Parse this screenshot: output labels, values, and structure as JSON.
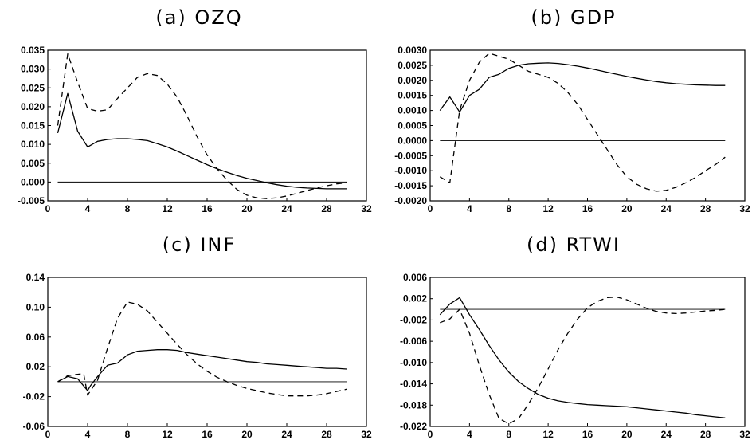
{
  "chart_data": [
    {
      "type": "line",
      "title": "(a) OZQ",
      "xlim": [
        0,
        32
      ],
      "ylim": [
        -0.005,
        0.035
      ],
      "x_ticks": [
        0,
        4,
        8,
        12,
        16,
        20,
        24,
        28,
        32
      ],
      "y_ticks": [
        -0.005,
        0.0,
        0.005,
        0.01,
        0.015,
        0.02,
        0.025,
        0.03,
        0.035
      ],
      "x_tick_labels": [
        "0",
        "4",
        "8",
        "12",
        "16",
        "20",
        "24",
        "28",
        "32"
      ],
      "y_tick_labels": [
        "-0.005",
        "0.000",
        "0.005",
        "0.010",
        "0.015",
        "0.020",
        "0.025",
        "0.030",
        "0.035"
      ],
      "zero_line": 0,
      "grid": false,
      "series": [
        {
          "style": "solid",
          "x": [
            1,
            2,
            3,
            4,
            5,
            6,
            7,
            8,
            9,
            10,
            11,
            12,
            13,
            14,
            15,
            16,
            17,
            18,
            19,
            20,
            21,
            22,
            23,
            24,
            25,
            26,
            27,
            28,
            29,
            30
          ],
          "y": [
            0.013,
            0.0235,
            0.0135,
            0.0093,
            0.0108,
            0.0113,
            0.0115,
            0.0115,
            0.0113,
            0.011,
            0.0102,
            0.0093,
            0.0082,
            0.007,
            0.0058,
            0.0046,
            0.0035,
            0.0026,
            0.0017,
            0.001,
            0.0004,
            -0.0002,
            -0.0007,
            -0.0011,
            -0.0014,
            -0.0016,
            -0.0017,
            -0.0018,
            -0.0018,
            -0.0018
          ]
        },
        {
          "style": "dashed",
          "x": [
            1,
            2,
            3,
            4,
            5,
            6,
            7,
            8,
            9,
            10,
            11,
            12,
            13,
            14,
            15,
            16,
            17,
            18,
            19,
            20,
            21,
            22,
            23,
            24,
            25,
            26,
            27,
            28,
            29,
            30
          ],
          "y": [
            0.015,
            0.034,
            0.0265,
            0.0195,
            0.0188,
            0.0192,
            0.0222,
            0.025,
            0.0278,
            0.0288,
            0.0283,
            0.026,
            0.0225,
            0.0175,
            0.012,
            0.0072,
            0.0035,
            0.0005,
            -0.002,
            -0.0035,
            -0.0042,
            -0.0044,
            -0.0042,
            -0.0037,
            -0.003,
            -0.0023,
            -0.0016,
            -0.001,
            -0.0005,
            -0.0002
          ]
        }
      ]
    },
    {
      "type": "line",
      "title": "(b) GDP",
      "xlim": [
        0,
        32
      ],
      "ylim": [
        -0.002,
        0.003
      ],
      "x_ticks": [
        0,
        4,
        8,
        12,
        16,
        20,
        24,
        28,
        32
      ],
      "y_ticks": [
        -0.002,
        -0.0015,
        -0.001,
        -0.0005,
        0.0,
        0.0005,
        0.001,
        0.0015,
        0.002,
        0.0025,
        0.003
      ],
      "x_tick_labels": [
        "0",
        "4",
        "8",
        "12",
        "16",
        "20",
        "24",
        "28",
        "32"
      ],
      "y_tick_labels": [
        "-0.0020",
        "-0.0015",
        "-0.0010",
        "-0.0005",
        "0.0000",
        "0.0005",
        "0.0010",
        "0.0015",
        "0.0020",
        "0.0025",
        "0.0030"
      ],
      "zero_line": 0,
      "grid": false,
      "series": [
        {
          "style": "solid",
          "x": [
            1,
            2,
            3,
            4,
            5,
            6,
            7,
            8,
            9,
            10,
            11,
            12,
            13,
            14,
            15,
            16,
            17,
            18,
            19,
            20,
            21,
            22,
            23,
            24,
            25,
            26,
            27,
            28,
            29,
            30
          ],
          "y": [
            0.001,
            0.00145,
            0.00095,
            0.0015,
            0.0017,
            0.0021,
            0.0022,
            0.0024,
            0.0025,
            0.00255,
            0.00257,
            0.00258,
            0.00256,
            0.00252,
            0.00247,
            0.00241,
            0.00234,
            0.00227,
            0.0022,
            0.00213,
            0.00207,
            0.00201,
            0.00196,
            0.00192,
            0.00189,
            0.00187,
            0.00185,
            0.00184,
            0.00183,
            0.00183
          ]
        },
        {
          "style": "dashed",
          "x": [
            1,
            2,
            3,
            4,
            5,
            6,
            7,
            8,
            9,
            10,
            11,
            12,
            13,
            14,
            15,
            16,
            17,
            18,
            19,
            20,
            21,
            22,
            23,
            24,
            25,
            26,
            27,
            28,
            29,
            30
          ],
          "y": [
            -0.0012,
            -0.0014,
            0.001,
            0.002,
            0.0026,
            0.0029,
            0.0028,
            0.0027,
            0.0025,
            0.0023,
            0.0022,
            0.0021,
            0.0019,
            0.0016,
            0.0012,
            0.0007,
            0.0002,
            -0.0003,
            -0.0008,
            -0.0012,
            -0.00145,
            -0.0016,
            -0.00168,
            -0.00165,
            -0.00155,
            -0.0014,
            -0.00122,
            -0.001,
            -0.0008,
            -0.00055
          ]
        }
      ]
    },
    {
      "type": "line",
      "title": "(c) INF",
      "xlim": [
        0,
        32
      ],
      "ylim": [
        -0.06,
        0.14
      ],
      "x_ticks": [
        0,
        4,
        8,
        12,
        16,
        20,
        24,
        28,
        32
      ],
      "y_ticks": [
        -0.06,
        -0.02,
        0.02,
        0.06,
        0.1,
        0.14
      ],
      "x_tick_labels": [
        "0",
        "4",
        "8",
        "12",
        "16",
        "20",
        "24",
        "28",
        "32"
      ],
      "y_tick_labels": [
        "-0.06",
        "-0.02",
        "0.02",
        "0.06",
        "0.10",
        "0.14"
      ],
      "zero_line": 0,
      "grid": false,
      "series": [
        {
          "style": "solid",
          "x": [
            1,
            2,
            3,
            4,
            4.3,
            5,
            6,
            7,
            8,
            9,
            10,
            11,
            12,
            13,
            14,
            15,
            16,
            17,
            18,
            19,
            20,
            21,
            22,
            23,
            24,
            25,
            26,
            27,
            28,
            29,
            30
          ],
          "y": [
            0.0,
            0.007,
            0.004,
            -0.012,
            -0.005,
            0.007,
            0.022,
            0.025,
            0.036,
            0.041,
            0.042,
            0.043,
            0.043,
            0.042,
            0.039,
            0.037,
            0.035,
            0.033,
            0.031,
            0.029,
            0.027,
            0.026,
            0.024,
            0.023,
            0.022,
            0.021,
            0.02,
            0.019,
            0.018,
            0.018,
            0.017
          ]
        },
        {
          "style": "dashed",
          "x": [
            1,
            2,
            3,
            3.6,
            4,
            5,
            6,
            7,
            8,
            9,
            10,
            11,
            12,
            13,
            14,
            15,
            16,
            17,
            18,
            19,
            20,
            21,
            22,
            23,
            24,
            25,
            26,
            27,
            28,
            29,
            30
          ],
          "y": [
            0.0,
            0.008,
            0.01,
            0.011,
            -0.018,
            0.002,
            0.045,
            0.085,
            0.107,
            0.104,
            0.095,
            0.08,
            0.065,
            0.05,
            0.036,
            0.024,
            0.014,
            0.006,
            0.0,
            -0.005,
            -0.009,
            -0.012,
            -0.015,
            -0.017,
            -0.019,
            -0.019,
            -0.019,
            -0.018,
            -0.016,
            -0.013,
            -0.01
          ]
        }
      ]
    },
    {
      "type": "line",
      "title": "(d) RTWI",
      "xlim": [
        0,
        32
      ],
      "ylim": [
        -0.022,
        0.006
      ],
      "x_ticks": [
        0,
        4,
        8,
        12,
        16,
        20,
        24,
        28,
        32
      ],
      "y_ticks": [
        -0.022,
        -0.018,
        -0.014,
        -0.01,
        -0.006,
        -0.002,
        0.002,
        0.006
      ],
      "x_tick_labels": [
        "0",
        "4",
        "8",
        "12",
        "16",
        "20",
        "24",
        "28",
        "32"
      ],
      "y_tick_labels": [
        "-0.022",
        "-0.018",
        "-0.014",
        "-0.010",
        "-0.006",
        "-0.002",
        "0.002",
        "0.006"
      ],
      "zero_line": 0,
      "grid": false,
      "series": [
        {
          "style": "solid",
          "x": [
            1,
            2,
            3,
            4,
            5,
            6,
            7,
            8,
            9,
            10,
            11,
            12,
            13,
            14,
            15,
            16,
            17,
            18,
            19,
            20,
            21,
            22,
            23,
            24,
            25,
            26,
            27,
            28,
            29,
            30
          ],
          "y": [
            -0.001,
            0.001,
            0.0022,
            -0.001,
            -0.0038,
            -0.0068,
            -0.0095,
            -0.0118,
            -0.0136,
            -0.0149,
            -0.016,
            -0.0167,
            -0.0172,
            -0.0175,
            -0.0177,
            -0.0179,
            -0.018,
            -0.0181,
            -0.0182,
            -0.0183,
            -0.0185,
            -0.0187,
            -0.0189,
            -0.0191,
            -0.0193,
            -0.0195,
            -0.0198,
            -0.02,
            -0.0202,
            -0.0204
          ]
        },
        {
          "style": "dashed",
          "x": [
            1,
            2,
            3,
            4,
            5,
            6,
            7,
            8,
            9,
            10,
            11,
            12,
            13,
            14,
            15,
            16,
            17,
            18,
            19,
            20,
            21,
            22,
            23,
            24,
            25,
            26,
            27,
            28,
            29,
            30
          ],
          "y": [
            -0.0025,
            -0.0018,
            0.0,
            -0.0045,
            -0.0105,
            -0.016,
            -0.0205,
            -0.0215,
            -0.0205,
            -0.0178,
            -0.0147,
            -0.0112,
            -0.0076,
            -0.0045,
            -0.0018,
            0.0003,
            0.0015,
            0.0022,
            0.0023,
            0.0018,
            0.001,
            0.0002,
            -0.0004,
            -0.0007,
            -0.0008,
            -0.0007,
            -0.0005,
            -0.0003,
            -0.0002,
            0.0
          ]
        }
      ]
    }
  ]
}
